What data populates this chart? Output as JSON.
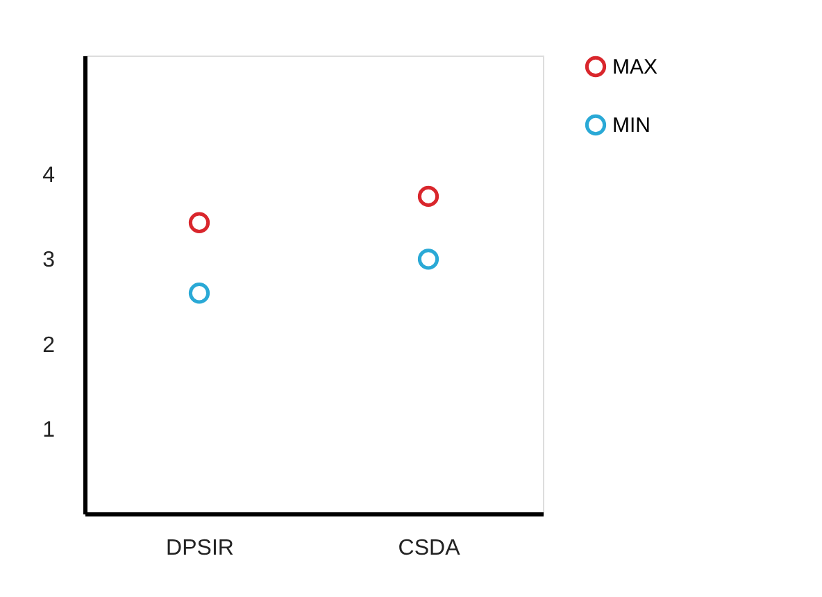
{
  "chart_data": {
    "type": "scatter",
    "categories": [
      "DPSIR",
      "CSDA"
    ],
    "series": [
      {
        "name": "MAX",
        "color": "#d9262c",
        "values": [
          3.43,
          3.74
        ]
      },
      {
        "name": "MIN",
        "color": "#2aa9d6",
        "values": [
          2.6,
          3.0
        ]
      }
    ],
    "ylim": [
      0,
      5.4
    ],
    "yticks": [
      1,
      2,
      3,
      4
    ],
    "grid": false,
    "legend": "right",
    "marker": "circle"
  }
}
